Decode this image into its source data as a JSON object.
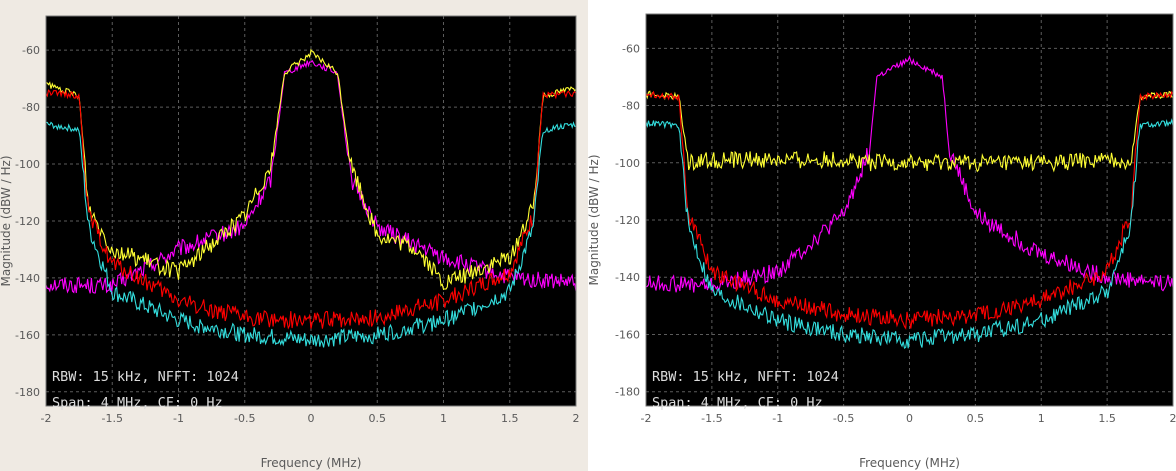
{
  "chart_data": [
    {
      "type": "line",
      "xlabel": "Frequency (MHz)",
      "ylabel": "Magnitude (dBW / Hz)",
      "xlim": [
        -2,
        2
      ],
      "ylim": [
        -185,
        -48
      ],
      "xticks": [
        "-2",
        "-1.5",
        "-1",
        "-0.5",
        "0",
        "0.5",
        "1",
        "1.5",
        "2"
      ],
      "xtick_values": [
        -2,
        -1.5,
        -1,
        -0.5,
        0,
        0.5,
        1,
        1.5,
        2
      ],
      "yticks": [
        "-60",
        "-80",
        "-100",
        "-120",
        "-140",
        "-160",
        "-180"
      ],
      "ytick_values": [
        -60,
        -80,
        -100,
        -120,
        -140,
        -160,
        -180
      ],
      "annotation": [
        "RBW: 15 kHz, NFFT: 1024",
        "Span: 4 MHz, CF: 0 Hz"
      ],
      "grid": true,
      "background": "#000000",
      "series": [
        {
          "color": "#ff00ff",
          "x": [
            -2,
            -1.5,
            -1.0,
            -0.5,
            -0.3,
            -0.2,
            0.0,
            0.2,
            0.3,
            0.5,
            1.0,
            1.5,
            2.0
          ],
          "y": [
            -142,
            -143,
            -130,
            -122,
            -105,
            -68,
            -64,
            -68,
            -105,
            -122,
            -133,
            -140,
            -142
          ]
        },
        {
          "color": "#ffff33",
          "x": [
            -2,
            -1.75,
            -1.68,
            -1.5,
            -1.0,
            -0.8,
            -0.5,
            -0.3,
            -0.2,
            0.0,
            0.2,
            0.3,
            0.5,
            0.8,
            1.0,
            1.5,
            1.68,
            1.75,
            2.0
          ],
          "y": [
            -72,
            -76,
            -115,
            -130,
            -138,
            -130,
            -118,
            -100,
            -68,
            -61,
            -68,
            -100,
            -125,
            -130,
            -142,
            -133,
            -115,
            -76,
            -73
          ]
        },
        {
          "color": "#ff0000",
          "x": [
            -2,
            -1.75,
            -1.68,
            -1.5,
            -1.0,
            -0.5,
            0.0,
            0.5,
            1.0,
            1.5,
            1.68,
            1.75,
            2.0
          ],
          "y": [
            -75,
            -76,
            -118,
            -135,
            -148,
            -154,
            -155,
            -154,
            -148,
            -138,
            -118,
            -76,
            -75
          ]
        },
        {
          "color": "#33dddd",
          "x": [
            -2,
            -1.75,
            -1.68,
            -1.5,
            -1.0,
            -0.5,
            0.0,
            0.5,
            1.0,
            1.5,
            1.68,
            1.75,
            2.0
          ],
          "y": [
            -86,
            -88,
            -122,
            -145,
            -155,
            -160,
            -162,
            -160,
            -155,
            -145,
            -122,
            -88,
            -86
          ]
        }
      ]
    },
    {
      "type": "line",
      "xlabel": "Frequency (MHz)",
      "ylabel": "Magnitude (dBW / Hz)",
      "xlim": [
        -2,
        2
      ],
      "ylim": [
        -185,
        -48
      ],
      "xticks": [
        "-2",
        "-1.5",
        "-1",
        "-0.5",
        "0",
        "0.5",
        "1",
        "1.5",
        "2"
      ],
      "xtick_values": [
        -2,
        -1.5,
        -1,
        -0.5,
        0,
        0.5,
        1,
        1.5,
        2
      ],
      "yticks": [
        "-60",
        "-80",
        "-100",
        "-120",
        "-140",
        "-160",
        "-180"
      ],
      "ytick_values": [
        -60,
        -80,
        -100,
        -120,
        -140,
        -160,
        -180
      ],
      "annotation": [
        "RBW: 15 kHz, NFFT: 1024",
        "Span: 4 MHz, CF: 0 Hz"
      ],
      "grid": true,
      "background": "#000000",
      "series": [
        {
          "color": "#ff00ff",
          "x": [
            -2,
            -1.5,
            -1.0,
            -0.5,
            -0.3,
            -0.25,
            0.0,
            0.25,
            0.3,
            0.5,
            1.0,
            1.5,
            2.0
          ],
          "y": [
            -142,
            -143,
            -138,
            -118,
            -95,
            -70,
            -64,
            -70,
            -95,
            -118,
            -132,
            -140,
            -142
          ]
        },
        {
          "color": "#ffff33",
          "x": [
            -2,
            -1.75,
            -1.68,
            -1.6,
            -1.0,
            -0.35,
            -0.3,
            0.3,
            0.35,
            1.0,
            1.6,
            1.68,
            1.75,
            2.0
          ],
          "y": [
            -76,
            -77,
            -100,
            -99,
            -99,
            -99,
            -100,
            -100,
            -100,
            -100,
            -99,
            -100,
            -77,
            -76
          ]
        },
        {
          "color": "#ff0000",
          "x": [
            -2,
            -1.75,
            -1.68,
            -1.5,
            -1.0,
            -0.5,
            0.0,
            0.5,
            1.0,
            1.5,
            1.68,
            1.75,
            2.0
          ],
          "y": [
            -76,
            -77,
            -118,
            -138,
            -148,
            -153,
            -155,
            -153,
            -148,
            -138,
            -118,
            -77,
            -76
          ]
        },
        {
          "color": "#33dddd",
          "x": [
            -2,
            -1.75,
            -1.68,
            -1.5,
            -1.0,
            -0.5,
            0.0,
            0.5,
            1.0,
            1.5,
            1.68,
            1.75,
            2.0
          ],
          "y": [
            -86,
            -87,
            -122,
            -145,
            -155,
            -160,
            -162,
            -160,
            -155,
            -145,
            -122,
            -87,
            -86
          ]
        }
      ]
    }
  ]
}
